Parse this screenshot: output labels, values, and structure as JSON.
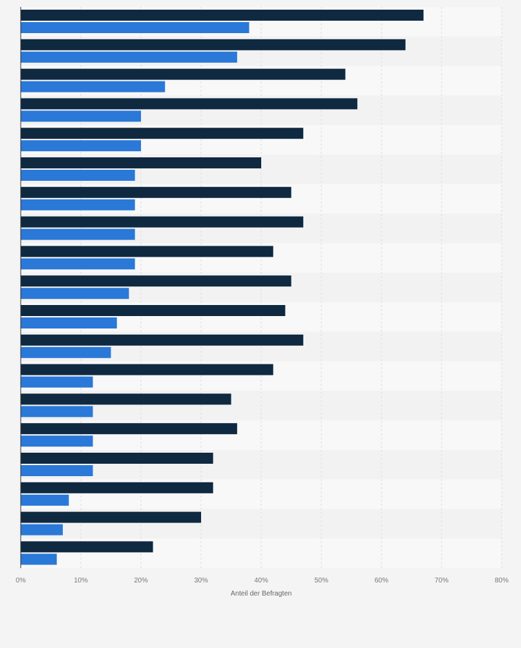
{
  "chart_data": {
    "type": "bar",
    "orientation": "horizontal",
    "categories": [
      "",
      "",
      "",
      "",
      "",
      "",
      "",
      "",
      "",
      "",
      "",
      "",
      "",
      "",
      "",
      "",
      "",
      "",
      ""
    ],
    "series": [
      {
        "color": "#0f2940",
        "values": [
          67,
          64,
          54,
          56,
          47,
          40,
          45,
          47,
          42,
          45,
          44,
          47,
          42,
          35,
          36,
          32,
          32,
          30,
          22
        ]
      },
      {
        "color": "#2a78d8",
        "values": [
          38,
          36,
          24,
          20,
          20,
          19,
          19,
          19,
          19,
          18,
          16,
          15,
          12,
          12,
          12,
          12,
          8,
          7,
          6
        ]
      }
    ],
    "xlim": [
      0,
      80
    ],
    "x_ticks": [
      "0%",
      "10%",
      "20%",
      "30%",
      "40%",
      "50%",
      "60%",
      "70%",
      "80%"
    ],
    "xlabel": "Anteil der Befragten",
    "grid": true,
    "colors": {
      "background": "#f4f4f4",
      "band_light": "#f8f8f8",
      "band_dark": "#f2f2f2",
      "gridline": "#dddddd"
    }
  }
}
